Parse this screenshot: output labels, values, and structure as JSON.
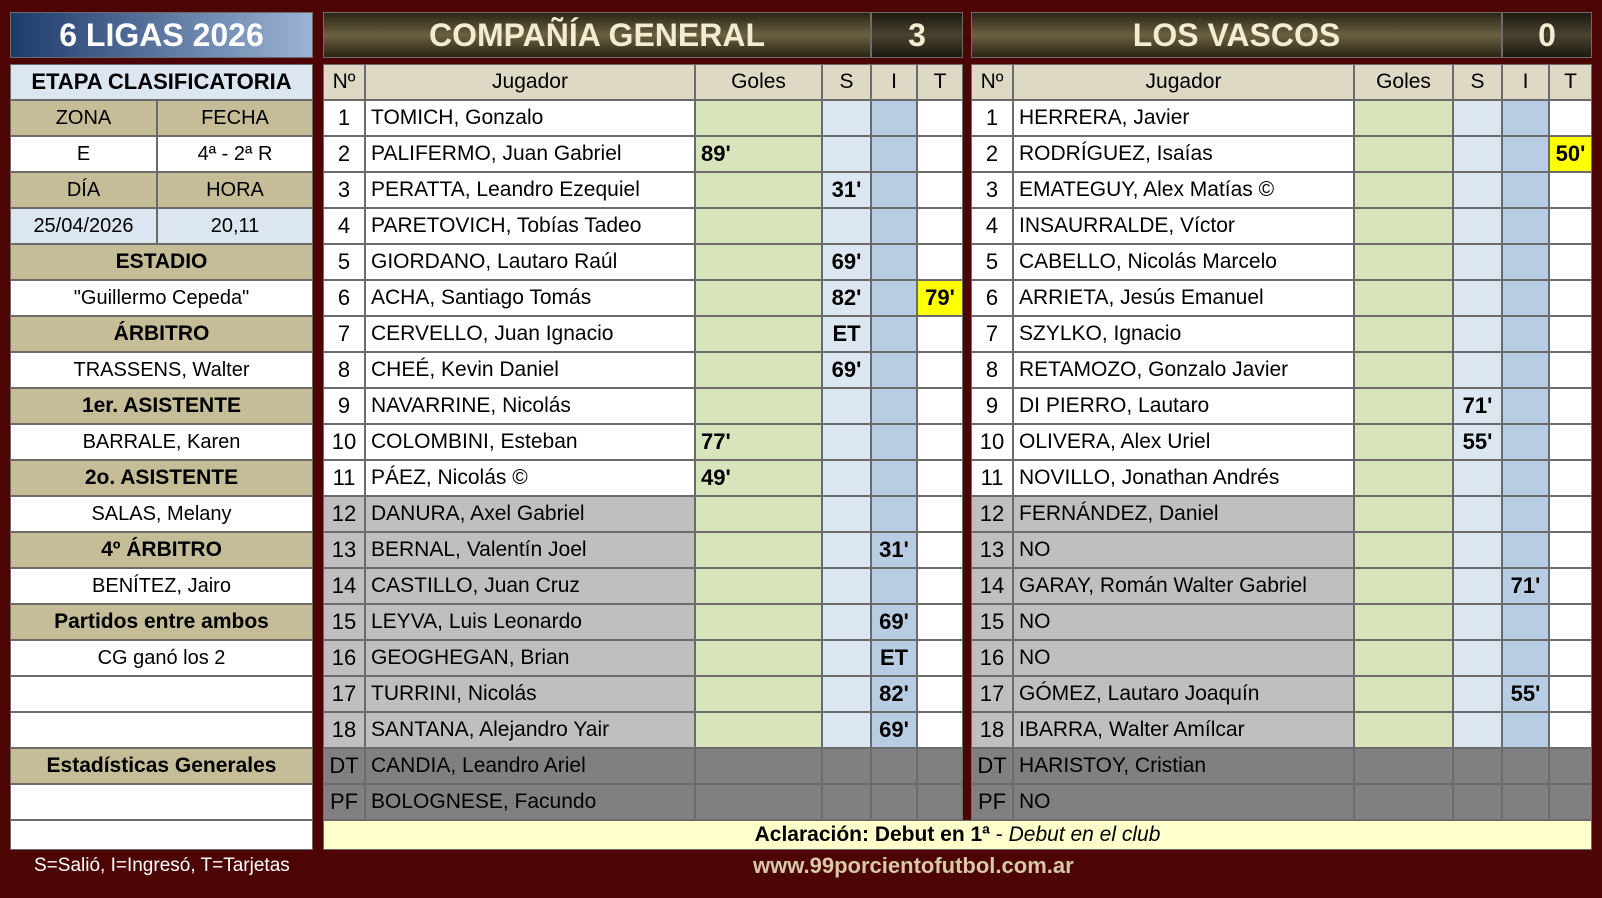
{
  "header": {
    "title": "6 LIGAS 2026",
    "stage": "ETAPA CLASIFICATORIA"
  },
  "info_grid": {
    "labels": [
      [
        "ZONA",
        "FECHA"
      ],
      [
        "DÍA",
        "HORA"
      ]
    ],
    "values": [
      [
        "E",
        "4ª - 2ª R"
      ],
      [
        "25/04/2026",
        "20,11"
      ]
    ]
  },
  "officials": [
    {
      "label": "ESTADIO",
      "value": "\"Guillermo Cepeda\""
    },
    {
      "label": "ÁRBITRO",
      "value": "TRASSENS, Walter"
    },
    {
      "label": "1er. ASISTENTE",
      "value": "BARRALE, Karen"
    },
    {
      "label": "2o. ASISTENTE",
      "value": "SALAS, Melany"
    },
    {
      "label": "4º ÁRBITRO",
      "value": "BENÍTEZ, Jairo"
    },
    {
      "label": "Partidos entre ambos",
      "value": "CG ganó los 2"
    }
  ],
  "stats_label": "Estadísticas Generales",
  "legend": "S=Salió, I=Ingresó, T=Tarjetas",
  "teams": [
    {
      "name": "COMPAÑÍA GENERAL",
      "score": 3,
      "columns": [
        "Nº",
        "Jugador",
        "Goles",
        "S",
        "I",
        "T"
      ],
      "starters": [
        {
          "n": 1,
          "player": "TOMICH, Gonzalo"
        },
        {
          "n": 2,
          "player": "PALIFERMO, Juan Gabriel",
          "goals": "89'"
        },
        {
          "n": 3,
          "player": "PERATTA, Leandro Ezequiel",
          "s": "31'"
        },
        {
          "n": 4,
          "player": "PARETOVICH, Tobías Tadeo"
        },
        {
          "n": 5,
          "player": "GIORDANO, Lautaro Raúl",
          "s": "69'"
        },
        {
          "n": 6,
          "player": "ACHA, Santiago Tomás",
          "s": "82'",
          "t": "79'"
        },
        {
          "n": 7,
          "player": "CERVELLO, Juan Ignacio",
          "s": "ET"
        },
        {
          "n": 8,
          "player": "CHEÉ, Kevin Daniel",
          "s": "69'"
        },
        {
          "n": 9,
          "player": "NAVARRINE, Nicolás"
        },
        {
          "n": 10,
          "player": "COLOMBINI, Esteban",
          "goals": "77'"
        },
        {
          "n": 11,
          "player": "PÁEZ, Nicolás ©",
          "goals": "49'"
        }
      ],
      "substitutes": [
        {
          "n": 12,
          "player": "DANURA, Axel Gabriel"
        },
        {
          "n": 13,
          "player": "BERNAL, Valentín Joel",
          "i": "31'"
        },
        {
          "n": 14,
          "player": "CASTILLO, Juan Cruz"
        },
        {
          "n": 15,
          "player": "LEYVA, Luis Leonardo",
          "i": "69'"
        },
        {
          "n": 16,
          "player": "GEOGHEGAN, Brian",
          "i": "ET"
        },
        {
          "n": 17,
          "player": "TURRINI, Nicolás",
          "i": "82'"
        },
        {
          "n": 18,
          "player": "SANTANA, Alejandro Yair",
          "i": "69'"
        }
      ],
      "staff": [
        {
          "n": "DT",
          "player": "CANDIA, Leandro Ariel"
        },
        {
          "n": "PF",
          "player": "BOLOGNESE, Facundo"
        }
      ]
    },
    {
      "name": "LOS VASCOS",
      "score": 0,
      "columns": [
        "Nº",
        "Jugador",
        "Goles",
        "S",
        "I",
        "T"
      ],
      "starters": [
        {
          "n": 1,
          "player": "HERRERA, Javier"
        },
        {
          "n": 2,
          "player": "RODRÍGUEZ, Isaías",
          "t": "50'"
        },
        {
          "n": 3,
          "player": "EMATEGUY, Alex Matías ©"
        },
        {
          "n": 4,
          "player": "INSAURRALDE, Víctor"
        },
        {
          "n": 5,
          "player": "CABELLO, Nicolás Marcelo"
        },
        {
          "n": 6,
          "player": "ARRIETA, Jesús Emanuel"
        },
        {
          "n": 7,
          "player": "SZYLKO, Ignacio"
        },
        {
          "n": 8,
          "player": "RETAMOZO, Gonzalo Javier"
        },
        {
          "n": 9,
          "player": "DI PIERRO, Lautaro",
          "s": "71'"
        },
        {
          "n": 10,
          "player": "OLIVERA, Alex Uriel",
          "s": "55'"
        },
        {
          "n": 11,
          "player": "NOVILLO, Jonathan Andrés"
        }
      ],
      "substitutes": [
        {
          "n": 12,
          "player": "FERNÁNDEZ, Daniel"
        },
        {
          "n": 13,
          "player": "NO"
        },
        {
          "n": 14,
          "player": "GARAY, Román Walter Gabriel",
          "i": "71'"
        },
        {
          "n": 15,
          "player": "NO"
        },
        {
          "n": 16,
          "player": "NO"
        },
        {
          "n": 17,
          "player": "GÓMEZ, Lautaro Joaquín",
          "i": "55'"
        },
        {
          "n": 18,
          "player": "IBARRA, Walter Amílcar"
        }
      ],
      "staff": [
        {
          "n": "DT",
          "player": "HARISTOY, Cristian"
        },
        {
          "n": "PF",
          "player": "NO"
        }
      ]
    }
  ],
  "note": {
    "bold": "Aclaración: Debut en 1ª",
    "separator": " - ",
    "italic": "Debut en el club"
  },
  "website": "www.99porcientofutbol.com.ar"
}
